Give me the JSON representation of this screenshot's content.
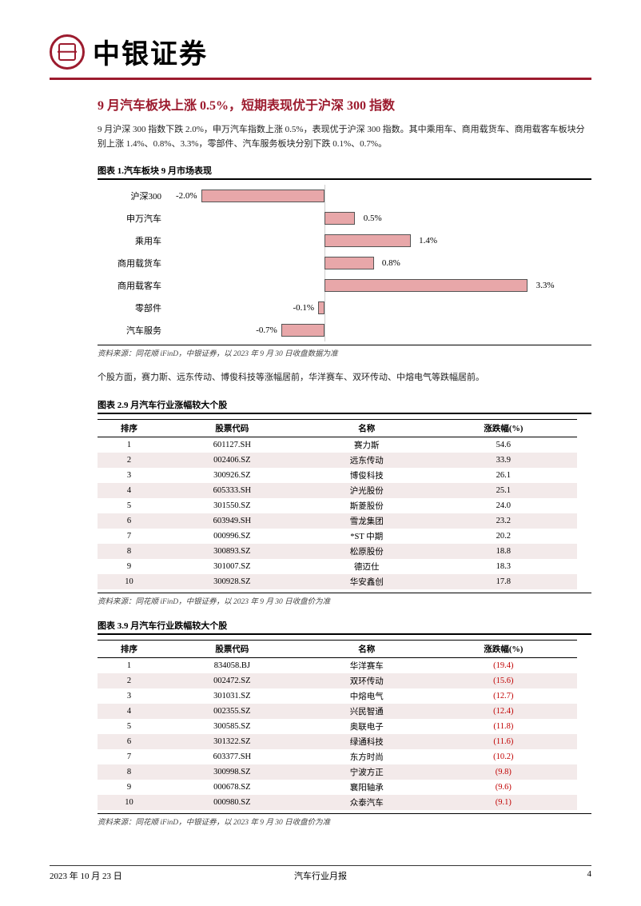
{
  "header": {
    "company_name": "中银证券"
  },
  "section": {
    "title": "9 月汽车板块上涨 0.5%，短期表现优于沪深 300 指数",
    "intro": "9 月沪深 300 指数下跌 2.0%，申万汽车指数上涨 0.5%，表现优于沪深 300 指数。其中乘用车、商用载货车、商用载客车板块分别上涨 1.4%、0.8%、3.3%，零部件、汽车服务板块分别下跌 0.1%、0.7%。",
    "stocks_intro": "个股方面，赛力斯、远东传动、博俊科技等涨幅居前，华洋赛车、双环传动、中熔电气等跌幅居前。"
  },
  "chart1": {
    "title": "图表 1.汽车板块 9 月市场表现",
    "source": "资料来源：同花顺 iFinD，中银证券，以 2023 年 9 月 30 日收盘数据为准",
    "bar_color": "#e8a7a9",
    "border_color": "#555555",
    "zero_pct": 38.5,
    "scale_pct_per_unit": 15,
    "items": [
      {
        "label": "沪深300",
        "value": -2.0,
        "display": "-2.0%"
      },
      {
        "label": "申万汽车",
        "value": 0.5,
        "display": "0.5%"
      },
      {
        "label": "乘用车",
        "value": 1.4,
        "display": "1.4%"
      },
      {
        "label": "商用载货车",
        "value": 0.8,
        "display": "0.8%"
      },
      {
        "label": "商用载客车",
        "value": 3.3,
        "display": "3.3%"
      },
      {
        "label": "零部件",
        "value": -0.1,
        "display": "-0.1%"
      },
      {
        "label": "汽车服务",
        "value": -0.7,
        "display": "-0.7%"
      }
    ]
  },
  "table2": {
    "title": "图表 2.9 月汽车行业涨幅较大个股",
    "source": "资料来源：同花顺 iFinD，中银证券，以 2023 年 9 月 30 日收盘价为准",
    "columns": [
      "排序",
      "股票代码",
      "名称",
      "涨跌幅(%)"
    ],
    "rows": [
      [
        "1",
        "601127.SH",
        "赛力斯",
        "54.6"
      ],
      [
        "2",
        "002406.SZ",
        "远东传动",
        "33.9"
      ],
      [
        "3",
        "300926.SZ",
        "博俊科技",
        "26.1"
      ],
      [
        "4",
        "605333.SH",
        "沪光股份",
        "25.1"
      ],
      [
        "5",
        "301550.SZ",
        "斯菱股份",
        "24.0"
      ],
      [
        "6",
        "603949.SH",
        "雪龙集团",
        "23.2"
      ],
      [
        "7",
        "000996.SZ",
        "*ST 中期",
        "20.2"
      ],
      [
        "8",
        "300893.SZ",
        "松原股份",
        "18.8"
      ],
      [
        "9",
        "301007.SZ",
        "德迈仕",
        "18.3"
      ],
      [
        "10",
        "300928.SZ",
        "华安鑫创",
        "17.8"
      ]
    ]
  },
  "table3": {
    "title": "图表 3.9 月汽车行业跌幅较大个股",
    "source": "资料来源：同花顺 iFinD，中银证券，以 2023 年 9 月 30 日收盘价为准",
    "columns": [
      "排序",
      "股票代码",
      "名称",
      "涨跌幅(%)"
    ],
    "rows": [
      [
        "1",
        "834058.BJ",
        "华洋赛车",
        "(19.4)"
      ],
      [
        "2",
        "002472.SZ",
        "双环传动",
        "(15.6)"
      ],
      [
        "3",
        "301031.SZ",
        "中熔电气",
        "(12.7)"
      ],
      [
        "4",
        "002355.SZ",
        "兴民智通",
        "(12.4)"
      ],
      [
        "5",
        "300585.SZ",
        "奥联电子",
        "(11.8)"
      ],
      [
        "6",
        "301322.SZ",
        "绿通科技",
        "(11.6)"
      ],
      [
        "7",
        "603377.SH",
        "东方时尚",
        "(10.2)"
      ],
      [
        "8",
        "300998.SZ",
        "宁波方正",
        "(9.8)"
      ],
      [
        "9",
        "000678.SZ",
        "襄阳轴承",
        "(9.6)"
      ],
      [
        "10",
        "000980.SZ",
        "众泰汽车",
        "(9.1)"
      ]
    ],
    "negative_col_index": 3
  },
  "footer": {
    "date": "2023 年 10 月 23 日",
    "doc_title": "汽车行业月报",
    "page": "4"
  }
}
